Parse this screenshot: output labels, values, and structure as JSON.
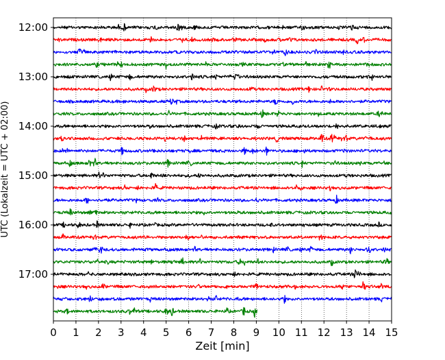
{
  "chart_data": {
    "type": "line",
    "title": "",
    "xlabel": "Zeit  [min]",
    "ylabel": "UTC (Lokalzeit = UTC + 02:00)",
    "xlim": [
      0,
      15
    ],
    "x_ticks": [
      0,
      1,
      2,
      3,
      4,
      5,
      6,
      7,
      8,
      9,
      10,
      11,
      12,
      13,
      14,
      15
    ],
    "y_tick_labels": [
      "12:00",
      "13:00",
      "14:00",
      "15:00",
      "16:00",
      "17:00"
    ],
    "grid": "vertical dotted at each minute",
    "colors": [
      "#000000",
      "#ff0000",
      "#0000ff",
      "#008000"
    ],
    "traces": [
      {
        "start": "12:00",
        "color": "#000000",
        "x_end": 15
      },
      {
        "start": "12:15",
        "color": "#ff0000",
        "x_end": 15
      },
      {
        "start": "12:30",
        "color": "#0000ff",
        "x_end": 15
      },
      {
        "start": "12:45",
        "color": "#008000",
        "x_end": 15
      },
      {
        "start": "13:00",
        "color": "#000000",
        "x_end": 15
      },
      {
        "start": "13:15",
        "color": "#ff0000",
        "x_end": 15
      },
      {
        "start": "13:30",
        "color": "#0000ff",
        "x_end": 15
      },
      {
        "start": "13:45",
        "color": "#008000",
        "x_end": 15
      },
      {
        "start": "14:00",
        "color": "#000000",
        "x_end": 15
      },
      {
        "start": "14:15",
        "color": "#ff0000",
        "x_end": 15
      },
      {
        "start": "14:30",
        "color": "#0000ff",
        "x_end": 15
      },
      {
        "start": "14:45",
        "color": "#008000",
        "x_end": 15
      },
      {
        "start": "15:00",
        "color": "#000000",
        "x_end": 15
      },
      {
        "start": "15:15",
        "color": "#ff0000",
        "x_end": 15
      },
      {
        "start": "15:30",
        "color": "#0000ff",
        "x_end": 15
      },
      {
        "start": "15:45",
        "color": "#008000",
        "x_end": 15
      },
      {
        "start": "16:00",
        "color": "#000000",
        "x_end": 15
      },
      {
        "start": "16:15",
        "color": "#ff0000",
        "x_end": 15
      },
      {
        "start": "16:30",
        "color": "#0000ff",
        "x_end": 15
      },
      {
        "start": "16:45",
        "color": "#008000",
        "x_end": 15
      },
      {
        "start": "17:00",
        "color": "#000000",
        "x_end": 15
      },
      {
        "start": "17:15",
        "color": "#ff0000",
        "x_end": 15
      },
      {
        "start": "17:30",
        "color": "#0000ff",
        "x_end": 15
      },
      {
        "start": "17:45",
        "color": "#008000",
        "x_end": 9.05
      }
    ]
  }
}
